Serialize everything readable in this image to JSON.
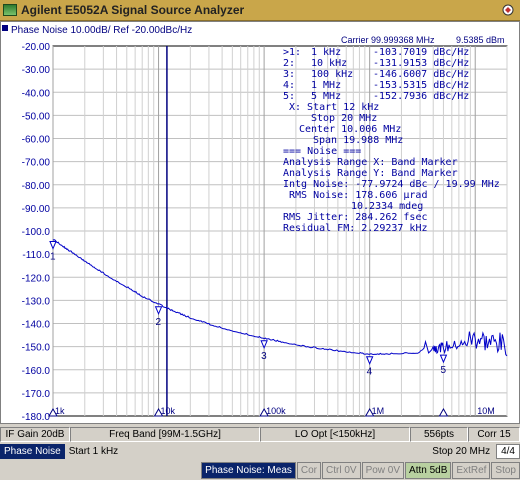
{
  "window": {
    "title": "Agilent E5052A Signal Source Analyzer"
  },
  "trace_header": {
    "label": "Phase Noise 10.00dB/ Ref -20.00dBc/Hz"
  },
  "carrier": {
    "label": "Carrier 99.999368 MHz",
    "power": "9.5385 dBm"
  },
  "y_ticks": [
    "-20.00",
    "-30.00",
    "-40.00",
    "-50.00",
    "-60.00",
    "-70.00",
    "-80.00",
    "-90.00",
    "-100.0",
    "-110.0",
    "-120.0",
    "-130.0",
    "-140.0",
    "-150.0",
    "-160.0",
    "-170.0",
    "-180.0"
  ],
  "x_tick_labels": [
    "1k",
    "10k",
    "100k",
    "1M",
    "10M"
  ],
  "markers": [
    {
      "id": "1",
      "label": ">1:",
      "freq": "1 kHz",
      "value": "-103.7019 dBc/Hz",
      "x": 1000,
      "y": -103.7
    },
    {
      "id": "2",
      "label": "2:",
      "freq": "10 kHz",
      "value": "-131.9153 dBc/Hz",
      "x": 10000,
      "y": -131.9
    },
    {
      "id": "3",
      "label": "3:",
      "freq": "100 kHz",
      "value": "-146.6007 dBc/Hz",
      "x": 100000,
      "y": -146.6
    },
    {
      "id": "4",
      "label": "4:",
      "freq": "1 MHz",
      "value": "-153.5315 dBc/Hz",
      "x": 1000000,
      "y": -153.5
    },
    {
      "id": "5",
      "label": "5:",
      "freq": "5 MHz",
      "value": "-152.7936 dBc/Hz",
      "x": 5000000,
      "y": -152.8
    }
  ],
  "analysis": {
    "x_start": "X: Start 12 kHz",
    "stop": "Stop 20 MHz",
    "center": "Center 10.006 MHz",
    "span": "Span 19.988 MHz",
    "noise_header": "=== Noise ===",
    "range_x": "Analysis Range X: Band Marker",
    "range_y": "Analysis Range Y: Band Marker",
    "intg_noise": "Intg Noise: -77.9724 dBc / 19.99 MHz",
    "rms_noise_1": "RMS Noise: 178.606 µrad",
    "rms_noise_2": "10.2334 mdeg",
    "rms_jitter": "RMS Jitter: 284.262 fsec",
    "residual_fm": "Residual FM: 2.29237 kHz"
  },
  "status": {
    "if_gain": "IF Gain 20dB",
    "freq_band": "Freq Band [99M-1.5GHz]",
    "lo_opt": "LO Opt [<150kHz]",
    "points": "556pts",
    "corr": "Corr 15"
  },
  "bar2": {
    "mode": "Phase Noise",
    "start": "Start 1 kHz",
    "stop": "Stop 20 MHz",
    "page": "4/4"
  },
  "bar3": {
    "meas": "Phase Noise: Meas",
    "cor": "Cor",
    "ctrl": "Ctrl 0V",
    "pow": "Pow 0V",
    "attn": "Attn 5dB",
    "extref": "ExtRef",
    "stop": "Stop"
  },
  "chart_data": {
    "type": "line",
    "title": "Phase Noise 10.00dB/ Ref -20.00dBc/Hz",
    "xscale": "log",
    "xlim": [
      1000,
      20000000
    ],
    "ylim": [
      -180,
      -20
    ],
    "grid": true,
    "series": [
      {
        "x": [
          1000,
          1300,
          1700,
          2200,
          3000,
          4000,
          5500,
          7000,
          10000,
          14000,
          20000,
          30000,
          45000,
          70000,
          100000,
          150000,
          250000,
          400000,
          700000,
          1000000,
          1500000,
          2500000,
          4000000,
          5000000,
          7000000,
          10000000,
          14000000,
          20000000
        ],
        "y": [
          -103.7,
          -107.5,
          -111.0,
          -114.5,
          -118.5,
          -122.0,
          -125.5,
          -128.5,
          -131.9,
          -135.0,
          -137.8,
          -140.5,
          -142.8,
          -145.0,
          -146.6,
          -148.3,
          -150.2,
          -151.5,
          -152.8,
          -153.5,
          -153.3,
          -153.0,
          -152.9,
          -152.8,
          -152.0,
          -151.0,
          -152.5,
          -154.0
        ]
      }
    ]
  },
  "colors": {
    "trace": "#0000c8",
    "marker": "#0000c8",
    "grid": "#c0c0c0",
    "title_bar": "#c9a64a"
  }
}
